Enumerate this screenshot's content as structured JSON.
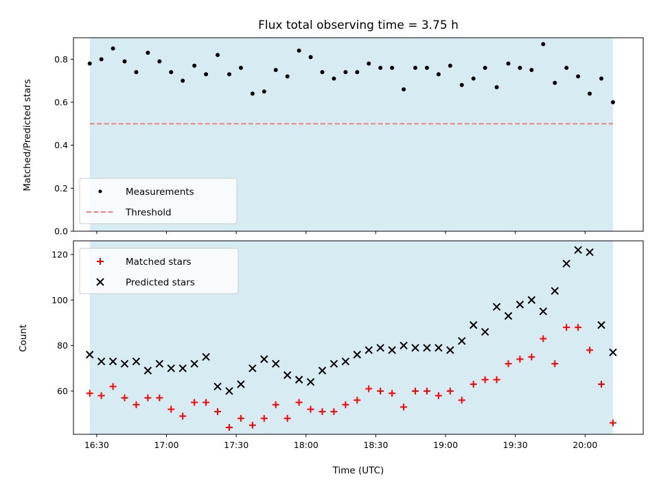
{
  "title": "Flux total observing time = 3.75 h",
  "colors": {
    "shade": "#ADD8E6",
    "threshold": "#F08080",
    "matched": "#FF0000",
    "predicted": "#000000",
    "measurement": "#000000"
  },
  "chart_data": [
    {
      "type": "scatter",
      "ylabel": "Matched/Predicted stars",
      "ylim": [
        0,
        0.9
      ],
      "yticks": [
        0,
        0.2,
        0.4,
        0.6,
        0.8
      ],
      "ytick_labels": [
        "0.0",
        "0.2",
        "0.4",
        "0.6",
        "0.8"
      ],
      "shaded_span": [
        "16:27",
        "20:12"
      ],
      "legend": {
        "placement": "lower-left",
        "entries": [
          "Measurements",
          "Threshold"
        ]
      },
      "threshold": {
        "name": "Threshold",
        "value": 0.5,
        "style": "dashed"
      },
      "series": [
        {
          "name": "Measurements",
          "marker": "dot",
          "x": [
            "16:27",
            "16:32",
            "16:37",
            "16:42",
            "16:47",
            "16:52",
            "16:57",
            "17:02",
            "17:07",
            "17:12",
            "17:17",
            "17:22",
            "17:27",
            "17:32",
            "17:37",
            "17:42",
            "17:47",
            "17:52",
            "17:57",
            "18:02",
            "18:07",
            "18:12",
            "18:17",
            "18:22",
            "18:27",
            "18:32",
            "18:37",
            "18:42",
            "18:47",
            "18:52",
            "18:57",
            "19:02",
            "19:07",
            "19:12",
            "19:17",
            "19:22",
            "19:27",
            "19:32",
            "19:37",
            "19:42",
            "19:47",
            "19:52",
            "19:57",
            "20:02",
            "20:07",
            "20:12"
          ],
          "y": [
            0.78,
            0.8,
            0.85,
            0.79,
            0.74,
            0.83,
            0.79,
            0.74,
            0.7,
            0.77,
            0.73,
            0.82,
            0.73,
            0.76,
            0.64,
            0.65,
            0.75,
            0.72,
            0.84,
            0.81,
            0.74,
            0.71,
            0.74,
            0.74,
            0.78,
            0.76,
            0.76,
            0.66,
            0.76,
            0.76,
            0.73,
            0.77,
            0.68,
            0.71,
            0.76,
            0.67,
            0.78,
            0.76,
            0.75,
            0.87,
            0.69,
            0.76,
            0.72,
            0.64,
            0.71,
            0.6
          ]
        }
      ]
    },
    {
      "type": "scatter",
      "xlabel": "Time (UTC)",
      "ylabel": "Count",
      "ylim": [
        41,
        126
      ],
      "yticks": [
        60,
        80,
        100,
        120
      ],
      "ytick_labels": [
        "60",
        "80",
        "100",
        "120"
      ],
      "xlim": [
        "16:20",
        "20:25"
      ],
      "xticks": [
        "16:30",
        "17:00",
        "17:30",
        "18:00",
        "18:30",
        "19:00",
        "19:30",
        "20:00"
      ],
      "shaded_span": [
        "16:27",
        "20:12"
      ],
      "legend": {
        "placement": "upper-left",
        "entries": [
          "Matched stars",
          "Predicted stars"
        ]
      },
      "series": [
        {
          "name": "Matched stars",
          "marker": "plus",
          "x": [
            "16:27",
            "16:32",
            "16:37",
            "16:42",
            "16:47",
            "16:52",
            "16:57",
            "17:02",
            "17:07",
            "17:12",
            "17:17",
            "17:22",
            "17:27",
            "17:32",
            "17:37",
            "17:42",
            "17:47",
            "17:52",
            "17:57",
            "18:02",
            "18:07",
            "18:12",
            "18:17",
            "18:22",
            "18:27",
            "18:32",
            "18:37",
            "18:42",
            "18:47",
            "18:52",
            "18:57",
            "19:02",
            "19:07",
            "19:12",
            "19:17",
            "19:22",
            "19:27",
            "19:32",
            "19:37",
            "19:42",
            "19:47",
            "19:52",
            "19:57",
            "20:02",
            "20:07",
            "20:12"
          ],
          "y": [
            59,
            58,
            62,
            57,
            54,
            57,
            57,
            52,
            49,
            55,
            55,
            51,
            44,
            48,
            45,
            48,
            54,
            48,
            55,
            52,
            51,
            51,
            54,
            56,
            61,
            60,
            59,
            53,
            60,
            60,
            58,
            60,
            56,
            63,
            65,
            65,
            72,
            74,
            75,
            83,
            72,
            88,
            88,
            78,
            63,
            46
          ]
        },
        {
          "name": "Predicted stars",
          "marker": "x",
          "x": [
            "16:27",
            "16:32",
            "16:37",
            "16:42",
            "16:47",
            "16:52",
            "16:57",
            "17:02",
            "17:07",
            "17:12",
            "17:17",
            "17:22",
            "17:27",
            "17:32",
            "17:37",
            "17:42",
            "17:47",
            "17:52",
            "17:57",
            "18:02",
            "18:07",
            "18:12",
            "18:17",
            "18:22",
            "18:27",
            "18:32",
            "18:37",
            "18:42",
            "18:47",
            "18:52",
            "18:57",
            "19:02",
            "19:07",
            "19:12",
            "19:17",
            "19:22",
            "19:27",
            "19:32",
            "19:37",
            "19:42",
            "19:47",
            "19:52",
            "19:57",
            "20:02",
            "20:07",
            "20:12"
          ],
          "y": [
            76,
            73,
            73,
            72,
            73,
            69,
            72,
            70,
            70,
            72,
            75,
            62,
            60,
            63,
            70,
            74,
            72,
            67,
            65,
            64,
            69,
            72,
            73,
            76,
            78,
            79,
            78,
            80,
            79,
            79,
            79,
            78,
            82,
            89,
            86,
            97,
            93,
            98,
            100,
            95,
            104,
            116,
            122,
            121,
            89,
            77
          ]
        }
      ]
    }
  ]
}
